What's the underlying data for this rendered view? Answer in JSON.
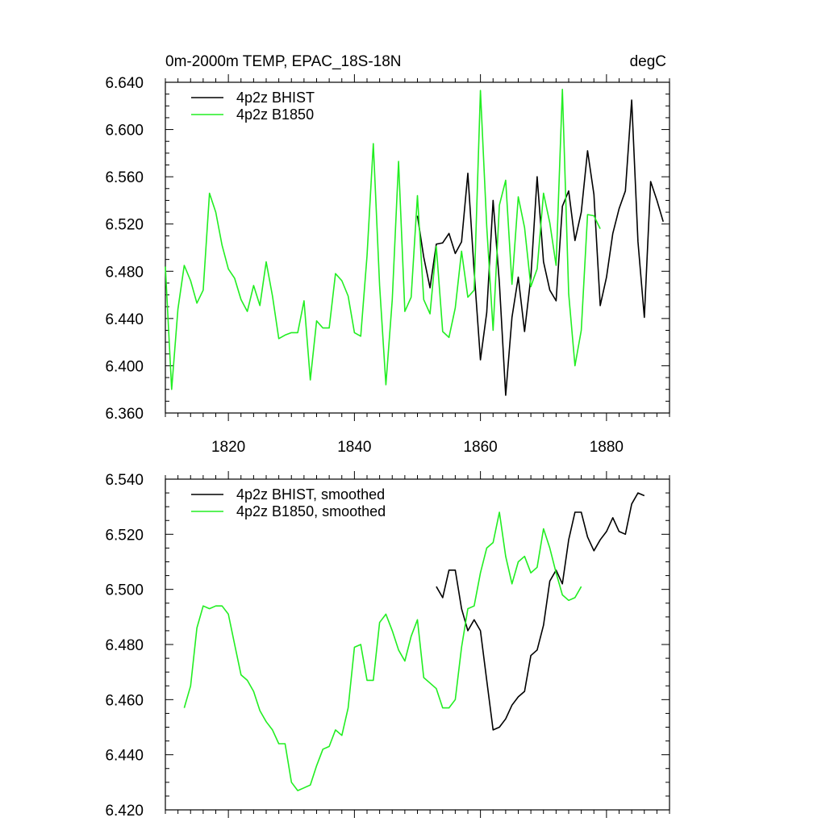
{
  "chart_data": [
    {
      "type": "line",
      "title": "0m-2000m TEMP, EPAC_18S-18N",
      "units": "degC",
      "xlim": [
        1810,
        1890
      ],
      "ylim": [
        6.36,
        6.64
      ],
      "xticks": [
        1820,
        1840,
        1860,
        1880
      ],
      "yticks": [
        "6.360",
        "6.400",
        "6.440",
        "6.480",
        "6.520",
        "6.560",
        "6.600",
        "6.640"
      ],
      "legend_position": "top-left",
      "series": [
        {
          "name": "4p2z BHIST",
          "color": "#000000",
          "x": [
            1850,
            1851,
            1852,
            1853,
            1854,
            1855,
            1856,
            1857,
            1858,
            1859,
            1860,
            1861,
            1862,
            1863,
            1864,
            1865,
            1866,
            1867,
            1868,
            1869,
            1870,
            1871,
            1872,
            1873,
            1874,
            1875,
            1876,
            1877,
            1878,
            1879,
            1880,
            1881,
            1882,
            1883,
            1884,
            1885,
            1886,
            1887,
            1888,
            1889
          ],
          "y": [
            6.527,
            6.492,
            6.466,
            6.503,
            6.504,
            6.512,
            6.495,
            6.505,
            6.563,
            6.48,
            6.405,
            6.445,
            6.54,
            6.47,
            6.375,
            6.441,
            6.475,
            6.429,
            6.475,
            6.56,
            6.488,
            6.464,
            6.455,
            6.535,
            6.548,
            6.506,
            6.53,
            6.582,
            6.545,
            6.451,
            6.475,
            6.512,
            6.533,
            6.548,
            6.625,
            6.505,
            6.441,
            6.556,
            6.54,
            6.522
          ]
        },
        {
          "name": "4p2z B1850",
          "color": "#22ee22",
          "x": [
            1810,
            1811,
            1812,
            1813,
            1814,
            1815,
            1816,
            1817,
            1818,
            1819,
            1820,
            1821,
            1822,
            1823,
            1824,
            1825,
            1826,
            1827,
            1828,
            1829,
            1830,
            1831,
            1832,
            1833,
            1834,
            1835,
            1836,
            1837,
            1838,
            1839,
            1840,
            1841,
            1842,
            1843,
            1844,
            1845,
            1846,
            1847,
            1848,
            1849,
            1850,
            1851,
            1852,
            1853,
            1854,
            1855,
            1856,
            1857,
            1858,
            1859,
            1860,
            1861,
            1862,
            1863,
            1864,
            1865,
            1866,
            1867,
            1868,
            1869,
            1870,
            1871,
            1872,
            1873,
            1874,
            1875,
            1876,
            1877,
            1878,
            1879
          ],
          "y": [
            6.484,
            6.38,
            6.448,
            6.485,
            6.472,
            6.453,
            6.464,
            6.546,
            6.53,
            6.502,
            6.482,
            6.474,
            6.456,
            6.446,
            6.468,
            6.451,
            6.488,
            6.459,
            6.423,
            6.426,
            6.428,
            6.428,
            6.455,
            6.388,
            6.438,
            6.432,
            6.432,
            6.478,
            6.472,
            6.459,
            6.428,
            6.425,
            6.493,
            6.588,
            6.468,
            6.384,
            6.456,
            6.573,
            6.446,
            6.458,
            6.544,
            6.456,
            6.444,
            6.501,
            6.429,
            6.424,
            6.449,
            6.497,
            6.458,
            6.464,
            6.633,
            6.518,
            6.43,
            6.536,
            6.557,
            6.469,
            6.543,
            6.517,
            6.467,
            6.482,
            6.546,
            6.521,
            6.485,
            6.634,
            6.461,
            6.4,
            6.43,
            6.528,
            6.527,
            6.516
          ]
        }
      ]
    },
    {
      "type": "line",
      "xlim": [
        1810,
        1890
      ],
      "ylim": [
        6.42,
        6.54
      ],
      "xticks": [
        1820,
        1840,
        1860,
        1880
      ],
      "yticks": [
        "6.420",
        "6.440",
        "6.460",
        "6.480",
        "6.500",
        "6.520",
        "6.540"
      ],
      "legend_position": "top-left",
      "series": [
        {
          "name": "4p2z BHIST, smoothed",
          "color": "#000000",
          "x": [
            1853,
            1854,
            1855,
            1856,
            1857,
            1858,
            1859,
            1860,
            1861,
            1862,
            1863,
            1864,
            1865,
            1866,
            1867,
            1868,
            1869,
            1870,
            1871,
            1872,
            1873,
            1874,
            1875,
            1876,
            1877,
            1878,
            1879,
            1880,
            1881,
            1882,
            1883,
            1884,
            1885,
            1886
          ],
          "y": [
            6.501,
            6.497,
            6.507,
            6.507,
            6.493,
            6.485,
            6.489,
            6.485,
            6.467,
            6.449,
            6.45,
            6.453,
            6.458,
            6.461,
            6.463,
            6.476,
            6.478,
            6.487,
            6.503,
            6.507,
            6.502,
            6.518,
            6.528,
            6.528,
            6.519,
            6.514,
            6.518,
            6.521,
            6.526,
            6.521,
            6.52,
            6.531,
            6.535,
            6.534
          ]
        },
        {
          "name": "4p2z B1850, smoothed",
          "color": "#22ee22",
          "x": [
            1813,
            1814,
            1815,
            1816,
            1817,
            1818,
            1819,
            1820,
            1821,
            1822,
            1823,
            1824,
            1825,
            1826,
            1827,
            1828,
            1829,
            1830,
            1831,
            1832,
            1833,
            1834,
            1835,
            1836,
            1837,
            1838,
            1839,
            1840,
            1841,
            1842,
            1843,
            1844,
            1845,
            1846,
            1847,
            1848,
            1849,
            1850,
            1851,
            1852,
            1853,
            1854,
            1855,
            1856,
            1857,
            1858,
            1859,
            1860,
            1861,
            1862,
            1863,
            1864,
            1865,
            1866,
            1867,
            1868,
            1869,
            1870,
            1871,
            1872,
            1873,
            1874,
            1875,
            1876
          ],
          "y": [
            6.457,
            6.465,
            6.486,
            6.494,
            6.493,
            6.494,
            6.494,
            6.491,
            6.48,
            6.469,
            6.467,
            6.463,
            6.456,
            6.452,
            6.449,
            6.444,
            6.444,
            6.43,
            6.427,
            6.428,
            6.429,
            6.436,
            6.442,
            6.443,
            6.449,
            6.447,
            6.457,
            6.479,
            6.48,
            6.467,
            6.467,
            6.488,
            6.491,
            6.485,
            6.478,
            6.474,
            6.483,
            6.489,
            6.468,
            6.466,
            6.464,
            6.457,
            6.457,
            6.46,
            6.479,
            6.493,
            6.494,
            6.506,
            6.515,
            6.517,
            6.528,
            6.512,
            6.502,
            6.51,
            6.512,
            6.506,
            6.508,
            6.522,
            6.515,
            6.506,
            6.498,
            6.496,
            6.497,
            6.501
          ]
        }
      ]
    }
  ]
}
